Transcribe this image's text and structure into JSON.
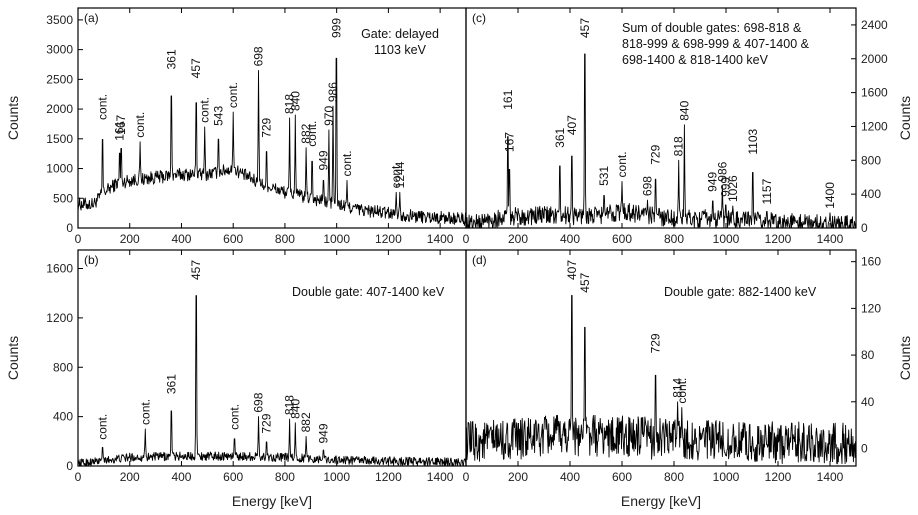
{
  "chart_data": [
    {
      "id": "a",
      "type": "line",
      "panel_label": "(a)",
      "note_lines": [
        "Gate: delayed",
        "1103 keV"
      ],
      "xlabel": "",
      "ylabel": "Counts",
      "xlim": [
        0,
        1500
      ],
      "ylim": [
        0,
        3700
      ],
      "xticks": [
        0,
        200,
        400,
        600,
        800,
        1000,
        1200,
        1400
      ],
      "yticks": [
        0,
        500,
        1000,
        1500,
        2000,
        2500,
        3000,
        3500
      ],
      "baseline": [
        [
          60,
          400
        ],
        [
          100,
          600
        ],
        [
          150,
          750
        ],
        [
          200,
          800
        ],
        [
          300,
          850
        ],
        [
          400,
          900
        ],
        [
          500,
          900
        ],
        [
          600,
          1000
        ],
        [
          700,
          750
        ],
        [
          800,
          600
        ],
        [
          900,
          500
        ],
        [
          1000,
          400
        ],
        [
          1100,
          300
        ],
        [
          1200,
          250
        ],
        [
          1300,
          200
        ],
        [
          1500,
          150
        ]
      ],
      "noise": 110,
      "peaks": [
        {
          "x": 95,
          "y": 1750,
          "label": "cont."
        },
        {
          "x": 161,
          "y": 1400,
          "label": "161"
        },
        {
          "x": 167,
          "y": 1500,
          "label": "167"
        },
        {
          "x": 240,
          "y": 1450,
          "label": "cont."
        },
        {
          "x": 361,
          "y": 2600,
          "label": "361"
        },
        {
          "x": 457,
          "y": 2450,
          "label": "457"
        },
        {
          "x": 490,
          "y": 1700,
          "label": "cont."
        },
        {
          "x": 543,
          "y": 1650,
          "label": "543"
        },
        {
          "x": 600,
          "y": 1950,
          "label": "cont."
        },
        {
          "x": 698,
          "y": 2650,
          "label": "698"
        },
        {
          "x": 729,
          "y": 1450,
          "label": "729"
        },
        {
          "x": 818,
          "y": 1850,
          "label": "818"
        },
        {
          "x": 840,
          "y": 1900,
          "label": "840"
        },
        {
          "x": 882,
          "y": 1350,
          "label": "882"
        },
        {
          "x": 905,
          "y": 1300,
          "label": "cont."
        },
        {
          "x": 949,
          "y": 900,
          "label": "949"
        },
        {
          "x": 970,
          "y": 1650,
          "label": "970"
        },
        {
          "x": 986,
          "y": 2050,
          "label": "986"
        },
        {
          "x": 999,
          "y": 3550,
          "label": "999"
        },
        {
          "x": 1040,
          "y": 800,
          "label": "cont."
        },
        {
          "x": 1230,
          "y": 600,
          "label": "cont."
        },
        {
          "x": 1244,
          "y": 600,
          "label": "1244"
        }
      ]
    },
    {
      "id": "b",
      "type": "line",
      "panel_label": "(b)",
      "note_lines": [
        "Double gate: 407-1400 keV"
      ],
      "xlabel": "Energy [keV]",
      "ylabel": "Counts",
      "xlim": [
        0,
        1500
      ],
      "ylim": [
        0,
        1750
      ],
      "xticks": [
        0,
        200,
        400,
        600,
        800,
        1000,
        1200,
        1400
      ],
      "yticks": [
        0,
        400,
        800,
        1200,
        1600
      ],
      "baseline": [
        [
          0,
          20
        ],
        [
          200,
          70
        ],
        [
          400,
          80
        ],
        [
          600,
          80
        ],
        [
          800,
          70
        ],
        [
          1000,
          50
        ],
        [
          1200,
          40
        ],
        [
          1500,
          30
        ]
      ],
      "noise": 35,
      "peaks": [
        {
          "x": 95,
          "y": 180,
          "label": "cont."
        },
        {
          "x": 260,
          "y": 300,
          "label": "cont."
        },
        {
          "x": 361,
          "y": 550,
          "label": "361"
        },
        {
          "x": 457,
          "y": 1750,
          "label": "457"
        },
        {
          "x": 605,
          "y": 260,
          "label": "cont."
        },
        {
          "x": 698,
          "y": 400,
          "label": "698"
        },
        {
          "x": 729,
          "y": 230,
          "label": "729"
        },
        {
          "x": 818,
          "y": 380,
          "label": "818"
        },
        {
          "x": 840,
          "y": 350,
          "label": "840"
        },
        {
          "x": 882,
          "y": 240,
          "label": "882"
        },
        {
          "x": 949,
          "y": 150,
          "label": "949"
        }
      ]
    },
    {
      "id": "c",
      "type": "line",
      "panel_label": "(c)",
      "note_lines": [
        "Sum of double gates: 698-818 &",
        "818-999 & 698-999 & 407-1400 &",
        "698-1400 & 818-1400 keV"
      ],
      "xlabel": "",
      "ylabel": "Counts",
      "xlim": [
        0,
        1500
      ],
      "ylim": [
        0,
        2600
      ],
      "xticks": [
        0,
        200,
        400,
        600,
        800,
        1000,
        1200,
        1400
      ],
      "yticks": [
        0,
        400,
        800,
        1200,
        1600,
        2000,
        2400
      ],
      "baseline": [
        [
          0,
          40
        ],
        [
          150,
          130
        ],
        [
          300,
          150
        ],
        [
          500,
          140
        ],
        [
          600,
          200
        ],
        [
          700,
          150
        ],
        [
          800,
          120
        ],
        [
          1000,
          100
        ],
        [
          1200,
          70
        ],
        [
          1500,
          40
        ]
      ],
      "noise": 110,
      "peaks": [
        {
          "x": 161,
          "y": 1350,
          "label": "161"
        },
        {
          "x": 167,
          "y": 850,
          "label": "167"
        },
        {
          "x": 361,
          "y": 900,
          "label": "361"
        },
        {
          "x": 407,
          "y": 1050,
          "label": "407"
        },
        {
          "x": 457,
          "y": 2600,
          "label": "457"
        },
        {
          "x": 531,
          "y": 450,
          "label": "531"
        },
        {
          "x": 600,
          "y": 550,
          "label": "cont."
        },
        {
          "x": 698,
          "y": 330,
          "label": "698"
        },
        {
          "x": 729,
          "y": 700,
          "label": "729"
        },
        {
          "x": 818,
          "y": 800,
          "label": "818"
        },
        {
          "x": 840,
          "y": 1220,
          "label": "840"
        },
        {
          "x": 949,
          "y": 380,
          "label": "949"
        },
        {
          "x": 986,
          "y": 500,
          "label": "986"
        },
        {
          "x": 999,
          "y": 320,
          "label": "999"
        },
        {
          "x": 1026,
          "y": 260,
          "label": "1026"
        },
        {
          "x": 1103,
          "y": 820,
          "label": "1103"
        },
        {
          "x": 1157,
          "y": 230,
          "label": "1157"
        },
        {
          "x": 1400,
          "y": 180,
          "label": "1400"
        }
      ]
    },
    {
      "id": "d",
      "type": "line",
      "panel_label": "(d)",
      "note_lines": [
        "Double gate: 882-1400 keV"
      ],
      "xlabel": "Energy [keV]",
      "ylabel": "Counts",
      "xlim": [
        0,
        1500
      ],
      "ylim": [
        -15,
        170
      ],
      "xticks": [
        0,
        200,
        400,
        600,
        800,
        1000,
        1200,
        1400
      ],
      "yticks": [
        0,
        40,
        80,
        120,
        160
      ],
      "baseline": [
        [
          0,
          5
        ],
        [
          200,
          8
        ],
        [
          400,
          12
        ],
        [
          600,
          10
        ],
        [
          800,
          8
        ],
        [
          1000,
          6
        ],
        [
          1200,
          5
        ],
        [
          1500,
          4
        ]
      ],
      "noise": 18,
      "peaks": [
        {
          "x": 407,
          "y": 165,
          "label": "407"
        },
        {
          "x": 457,
          "y": 130,
          "label": "457"
        },
        {
          "x": 729,
          "y": 78,
          "label": "729"
        },
        {
          "x": 814,
          "y": 40,
          "label": "814"
        },
        {
          "x": 830,
          "y": 35,
          "label": "cont."
        }
      ]
    }
  ]
}
